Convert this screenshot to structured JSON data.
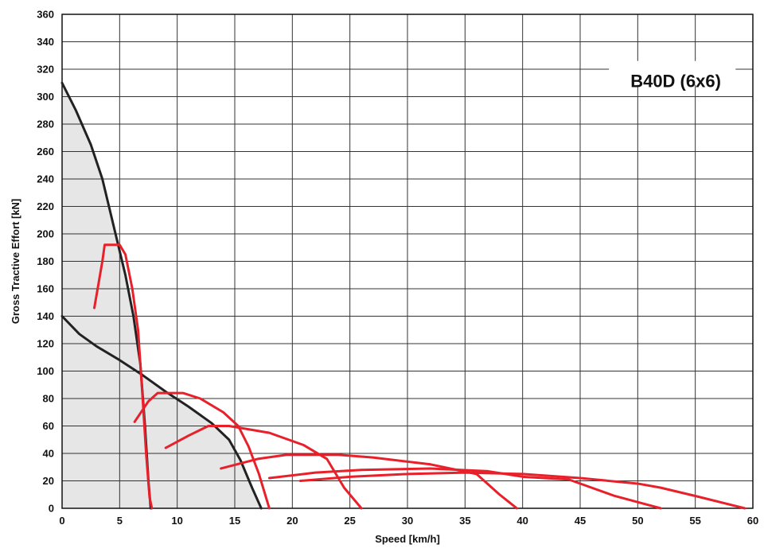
{
  "chart_data": {
    "type": "line",
    "title": "B40D (6x6)",
    "xlabel": "Speed [km/h]",
    "ylabel": "Gross Tractive Effort [kN]",
    "xlim": [
      0,
      60
    ],
    "ylim": [
      0,
      360
    ],
    "xticks": [
      0,
      5,
      10,
      15,
      20,
      25,
      30,
      35,
      40,
      45,
      50,
      55,
      60
    ],
    "yticks": [
      0,
      20,
      40,
      60,
      80,
      100,
      120,
      140,
      160,
      180,
      200,
      220,
      240,
      260,
      280,
      300,
      320,
      340,
      360
    ],
    "grid": true,
    "colors": {
      "envelope": "#222222",
      "gear": "#e8202a",
      "fill": "#e6e6e6",
      "grid": "#333333"
    },
    "series": [
      {
        "group": "envelope",
        "points": [
          [
            0,
            310
          ],
          [
            1.2,
            290
          ],
          [
            2.5,
            265
          ],
          [
            3.5,
            240
          ],
          [
            4.5,
            205
          ],
          [
            5.5,
            170
          ],
          [
            6.2,
            140
          ],
          [
            6.8,
            105
          ],
          [
            7.2,
            60
          ],
          [
            7.5,
            20
          ],
          [
            7.7,
            0
          ]
        ]
      },
      {
        "group": "envelope",
        "points": [
          [
            0,
            140
          ],
          [
            1.5,
            127
          ],
          [
            3,
            118
          ],
          [
            5,
            108
          ],
          [
            7,
            97
          ],
          [
            9,
            85
          ],
          [
            11,
            74
          ],
          [
            13,
            62
          ],
          [
            14.5,
            50
          ],
          [
            15.5,
            35
          ],
          [
            16.5,
            15
          ],
          [
            17.3,
            0
          ]
        ]
      },
      {
        "group": "gear",
        "points": [
          [
            2.8,
            146
          ],
          [
            3.5,
            180
          ],
          [
            3.7,
            192
          ],
          [
            5,
            192
          ],
          [
            5.5,
            185
          ],
          [
            6.1,
            160
          ],
          [
            6.6,
            130
          ],
          [
            7,
            80
          ],
          [
            7.3,
            40
          ],
          [
            7.6,
            8
          ],
          [
            7.8,
            0
          ]
        ]
      },
      {
        "group": "gear",
        "points": [
          [
            6.3,
            63
          ],
          [
            7.5,
            78
          ],
          [
            8.3,
            84
          ],
          [
            10.5,
            84
          ],
          [
            12,
            80
          ],
          [
            14,
            70
          ],
          [
            15.3,
            60
          ],
          [
            16.2,
            45
          ],
          [
            17.1,
            25
          ],
          [
            18,
            0
          ]
        ]
      },
      {
        "group": "gear",
        "points": [
          [
            9,
            44
          ],
          [
            11,
            53
          ],
          [
            12.7,
            60
          ],
          [
            14.5,
            60
          ],
          [
            18,
            55
          ],
          [
            21,
            46
          ],
          [
            23,
            36
          ],
          [
            24.5,
            15
          ],
          [
            26,
            0
          ]
        ]
      },
      {
        "group": "gear",
        "points": [
          [
            13.8,
            29
          ],
          [
            17,
            36
          ],
          [
            19.5,
            39
          ],
          [
            24,
            39
          ],
          [
            27,
            37
          ],
          [
            32,
            32
          ],
          [
            36,
            25
          ],
          [
            38,
            10
          ],
          [
            39.5,
            0
          ]
        ]
      },
      {
        "group": "gear",
        "points": [
          [
            18,
            22
          ],
          [
            22,
            26
          ],
          [
            26,
            28
          ],
          [
            32,
            29
          ],
          [
            37,
            27
          ],
          [
            40,
            23
          ],
          [
            44,
            21
          ],
          [
            46,
            15
          ],
          [
            48,
            9
          ],
          [
            52,
            0
          ]
        ]
      },
      {
        "group": "gear",
        "points": [
          [
            20.7,
            20
          ],
          [
            25,
            23
          ],
          [
            30,
            25
          ],
          [
            35,
            26
          ],
          [
            40,
            25
          ],
          [
            45,
            22
          ],
          [
            50,
            18
          ],
          [
            52,
            15
          ],
          [
            55,
            9
          ],
          [
            59.3,
            0
          ]
        ]
      }
    ]
  }
}
